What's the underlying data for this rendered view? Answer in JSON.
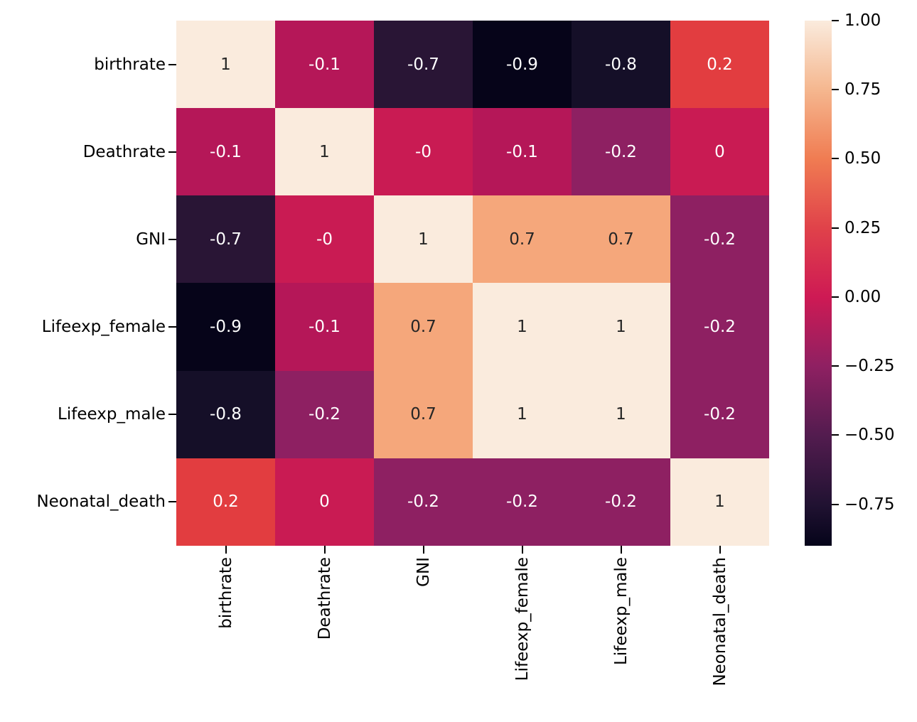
{
  "figure": {
    "background": "#ffffff",
    "title": ""
  },
  "chart_data": {
    "type": "heatmap",
    "title": "",
    "xlabel": "",
    "ylabel": "",
    "labels": [
      "birthrate",
      "Deathrate",
      "GNI",
      "Lifeexp_female",
      "Lifeexp_male",
      "Neonatal_death"
    ],
    "matrix": [
      [
        1.0,
        -0.1,
        -0.7,
        -0.9,
        -0.8,
        0.2
      ],
      [
        -0.1,
        1.0,
        -0.0,
        -0.1,
        -0.2,
        0.0
      ],
      [
        -0.7,
        -0.0,
        1.0,
        0.7,
        0.7,
        -0.2
      ],
      [
        -0.9,
        -0.1,
        0.7,
        1.0,
        1.0,
        -0.2
      ],
      [
        -0.8,
        -0.2,
        0.7,
        1.0,
        1.0,
        -0.2
      ],
      [
        0.2,
        0.0,
        -0.2,
        -0.2,
        -0.2,
        1.0
      ]
    ],
    "annotations": [
      [
        "1",
        "-0.1",
        "-0.7",
        "-0.9",
        "-0.8",
        "0.2"
      ],
      [
        "-0.1",
        "1",
        "-0",
        "-0.1",
        "-0.2",
        "0"
      ],
      [
        "-0.7",
        "-0",
        "1",
        "0.7",
        "0.7",
        "-0.2"
      ],
      [
        "-0.9",
        "-0.1",
        "0.7",
        "1",
        "1",
        "-0.2"
      ],
      [
        "-0.8",
        "-0.2",
        "0.7",
        "1",
        "1",
        "-0.2"
      ],
      [
        "0.2",
        "0",
        "-0.2",
        "-0.2",
        "-0.2",
        "1"
      ]
    ],
    "colormap": "rocket",
    "vmin": -0.9,
    "vmax": 1.0,
    "legend_position": "right-colorbar",
    "grid": false,
    "colorbar_tick_labels": [
      "1.00",
      "0.75",
      "0.50",
      "0.25",
      "0.00",
      "−0.25",
      "−0.50",
      "−0.75"
    ],
    "colorbar_tick_values": [
      1.0,
      0.75,
      0.5,
      0.25,
      0.0,
      -0.25,
      -0.5,
      -0.75
    ],
    "cell_colors": {
      "1": "#faebdd",
      "0.7": "#f5a77b",
      "0.2": "#e23d40",
      "0": "#c91b53",
      "-0": "#c91b53",
      "-0.1": "#b51758",
      "-0.2": "#8e2062",
      "-0.7": "#291535",
      "-0.8": "#150f28",
      "-0.9": "#060419"
    },
    "dark_text_values": [
      "1",
      "0.7"
    ],
    "annotation_text_colors": {
      "dark": "#262626",
      "light": "#ffffff"
    },
    "gradient_stops": [
      {
        "pos": 0,
        "color": "#faebdd"
      },
      {
        "pos": 13.16,
        "color": "#f5b78f"
      },
      {
        "pos": 26.32,
        "color": "#f07c52"
      },
      {
        "pos": 39.47,
        "color": "#e0424a"
      },
      {
        "pos": 52.63,
        "color": "#ce1a54"
      },
      {
        "pos": 65.79,
        "color": "#8f2062"
      },
      {
        "pos": 78.95,
        "color": "#531c4f"
      },
      {
        "pos": 92.11,
        "color": "#211232"
      },
      {
        "pos": 100,
        "color": "#05041a"
      }
    ],
    "axis_tick_color": "#000000",
    "axis_label_color": "#000000"
  }
}
